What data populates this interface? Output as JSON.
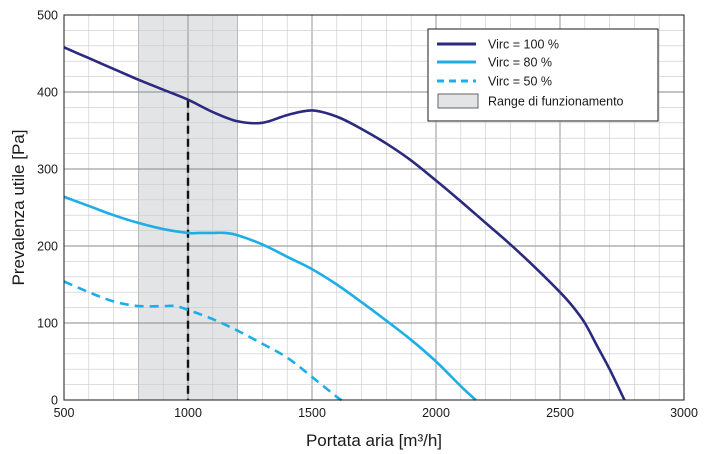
{
  "chart_data": {
    "type": "line",
    "xlabel": "Portata aria [m³/h]",
    "ylabel": "Prevalenza utile [Pa]",
    "xlim": [
      500,
      3000
    ],
    "ylim": [
      0,
      500
    ],
    "x_major_ticks": [
      500,
      1000,
      1500,
      2000,
      2500,
      3000
    ],
    "y_major_ticks": [
      0,
      100,
      200,
      300,
      400,
      500
    ],
    "x_minor_step": 100,
    "y_minor_step": 20,
    "grid": true,
    "legend_position": "top-right",
    "operating_range": {
      "name": "Range di funzionamento",
      "x": [
        800,
        1200
      ],
      "color": "#e3e4e6"
    },
    "reference_line": {
      "x": 1000,
      "style": "dashed",
      "color": "#111111"
    },
    "series": [
      {
        "name": "Virc = 100 %",
        "color": "#2b2a7e",
        "style": "solid",
        "x": [
          500,
          600,
          700,
          800,
          900,
          1000,
          1100,
          1200,
          1300,
          1400,
          1500,
          1600,
          1700,
          1800,
          1900,
          2000,
          2100,
          2200,
          2300,
          2400,
          2500,
          2550,
          2600,
          2650,
          2700,
          2760
        ],
        "y": [
          458,
          444,
          430,
          416,
          403,
          390,
          374,
          362,
          360,
          370,
          376,
          368,
          352,
          333,
          311,
          285,
          258,
          230,
          202,
          172,
          140,
          122,
          100,
          70,
          40,
          0
        ]
      },
      {
        "name": "Virc = 80 %",
        "color": "#1eaee6",
        "style": "solid",
        "x": [
          500,
          600,
          700,
          800,
          900,
          1000,
          1050,
          1100,
          1150,
          1200,
          1300,
          1400,
          1500,
          1600,
          1700,
          1800,
          1900,
          2000,
          2100,
          2160
        ],
        "y": [
          264,
          252,
          240,
          230,
          222,
          217,
          217,
          217,
          217,
          214,
          202,
          186,
          170,
          150,
          127,
          103,
          78,
          50,
          18,
          0
        ]
      },
      {
        "name": "Virc = 50 %",
        "color": "#1eaee6",
        "style": "dashed",
        "x": [
          500,
          600,
          700,
          800,
          900,
          950,
          1000,
          1100,
          1200,
          1300,
          1400,
          1500,
          1600,
          1620
        ],
        "y": [
          154,
          140,
          128,
          122,
          122,
          122,
          117,
          105,
          90,
          73,
          55,
          30,
          4,
          0
        ]
      }
    ]
  }
}
